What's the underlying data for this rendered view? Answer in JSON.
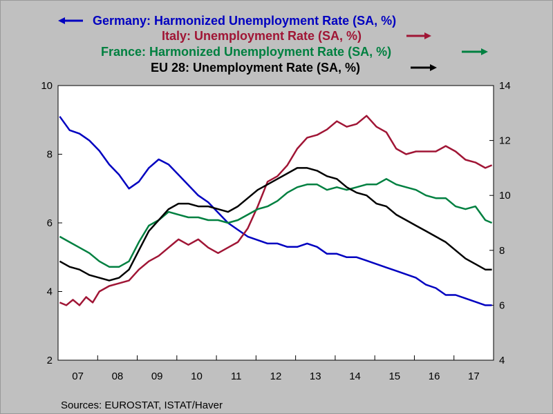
{
  "chart_data": {
    "type": "line",
    "title": "",
    "source": "Sources:  EUROSTAT, ISTAT/Haver",
    "x_start": "2007-01",
    "x_end": "2017-12",
    "x_ticks": [
      "07",
      "08",
      "09",
      "10",
      "11",
      "12",
      "13",
      "14",
      "15",
      "16",
      "17"
    ],
    "y_left": {
      "min": 2,
      "max": 10,
      "ticks": [
        "2",
        "4",
        "6",
        "8",
        "10"
      ]
    },
    "y_right": {
      "min": 4,
      "max": 14,
      "ticks": [
        "4",
        "6",
        "8",
        "10",
        "12",
        "14"
      ]
    },
    "grid": false,
    "legend_position": "top-center",
    "colors": {
      "germany": "#0000c0",
      "italy": "#a01535",
      "france": "#008040",
      "eu": "#000000",
      "plot_bg": "#ffffff",
      "page_bg": "#c0c0c0"
    },
    "series": [
      {
        "key": "germany",
        "name": "Germany: Harmonized Unemployment Rate (SA, %)",
        "axis": "left",
        "arrow": "left",
        "values": [
          {
            "x": "2007-01",
            "y": 9.1
          },
          {
            "x": "2007-04",
            "y": 8.7
          },
          {
            "x": "2007-07",
            "y": 8.6
          },
          {
            "x": "2007-10",
            "y": 8.4
          },
          {
            "x": "2008-01",
            "y": 8.1
          },
          {
            "x": "2008-04",
            "y": 7.7
          },
          {
            "x": "2008-07",
            "y": 7.4
          },
          {
            "x": "2008-10",
            "y": 7.0
          },
          {
            "x": "2009-01",
            "y": 7.2
          },
          {
            "x": "2009-04",
            "y": 7.6
          },
          {
            "x": "2009-07",
            "y": 7.85
          },
          {
            "x": "2009-10",
            "y": 7.7
          },
          {
            "x": "2010-01",
            "y": 7.4
          },
          {
            "x": "2010-04",
            "y": 7.1
          },
          {
            "x": "2010-07",
            "y": 6.8
          },
          {
            "x": "2010-10",
            "y": 6.6
          },
          {
            "x": "2011-01",
            "y": 6.3
          },
          {
            "x": "2011-04",
            "y": 6.0
          },
          {
            "x": "2011-07",
            "y": 5.8
          },
          {
            "x": "2011-10",
            "y": 5.6
          },
          {
            "x": "2012-01",
            "y": 5.5
          },
          {
            "x": "2012-04",
            "y": 5.4
          },
          {
            "x": "2012-07",
            "y": 5.4
          },
          {
            "x": "2012-10",
            "y": 5.3
          },
          {
            "x": "2013-01",
            "y": 5.3
          },
          {
            "x": "2013-04",
            "y": 5.4
          },
          {
            "x": "2013-07",
            "y": 5.3
          },
          {
            "x": "2013-10",
            "y": 5.1
          },
          {
            "x": "2014-01",
            "y": 5.1
          },
          {
            "x": "2014-04",
            "y": 5.0
          },
          {
            "x": "2014-07",
            "y": 5.0
          },
          {
            "x": "2014-10",
            "y": 4.9
          },
          {
            "x": "2015-01",
            "y": 4.8
          },
          {
            "x": "2015-04",
            "y": 4.7
          },
          {
            "x": "2015-07",
            "y": 4.6
          },
          {
            "x": "2015-10",
            "y": 4.5
          },
          {
            "x": "2016-01",
            "y": 4.4
          },
          {
            "x": "2016-04",
            "y": 4.2
          },
          {
            "x": "2016-07",
            "y": 4.1
          },
          {
            "x": "2016-10",
            "y": 3.9
          },
          {
            "x": "2017-01",
            "y": 3.9
          },
          {
            "x": "2017-04",
            "y": 3.8
          },
          {
            "x": "2017-07",
            "y": 3.7
          },
          {
            "x": "2017-10",
            "y": 3.6
          },
          {
            "x": "2017-12",
            "y": 3.6
          }
        ]
      },
      {
        "key": "italy",
        "name": "Italy: Unemployment Rate (SA, %)",
        "axis": "right",
        "arrow": "right",
        "values": [
          {
            "x": "2007-01",
            "y": 6.1
          },
          {
            "x": "2007-03",
            "y": 6.0
          },
          {
            "x": "2007-05",
            "y": 6.2
          },
          {
            "x": "2007-07",
            "y": 6.0
          },
          {
            "x": "2007-09",
            "y": 6.3
          },
          {
            "x": "2007-11",
            "y": 6.1
          },
          {
            "x": "2008-01",
            "y": 6.5
          },
          {
            "x": "2008-04",
            "y": 6.7
          },
          {
            "x": "2008-07",
            "y": 6.8
          },
          {
            "x": "2008-10",
            "y": 6.9
          },
          {
            "x": "2009-01",
            "y": 7.3
          },
          {
            "x": "2009-04",
            "y": 7.6
          },
          {
            "x": "2009-07",
            "y": 7.8
          },
          {
            "x": "2009-10",
            "y": 8.1
          },
          {
            "x": "2010-01",
            "y": 8.4
          },
          {
            "x": "2010-04",
            "y": 8.2
          },
          {
            "x": "2010-07",
            "y": 8.4
          },
          {
            "x": "2010-10",
            "y": 8.1
          },
          {
            "x": "2011-01",
            "y": 7.9
          },
          {
            "x": "2011-04",
            "y": 8.1
          },
          {
            "x": "2011-07",
            "y": 8.3
          },
          {
            "x": "2011-10",
            "y": 8.8
          },
          {
            "x": "2012-01",
            "y": 9.6
          },
          {
            "x": "2012-04",
            "y": 10.5
          },
          {
            "x": "2012-07",
            "y": 10.7
          },
          {
            "x": "2012-10",
            "y": 11.1
          },
          {
            "x": "2013-01",
            "y": 11.7
          },
          {
            "x": "2013-04",
            "y": 12.1
          },
          {
            "x": "2013-07",
            "y": 12.2
          },
          {
            "x": "2013-10",
            "y": 12.4
          },
          {
            "x": "2014-01",
            "y": 12.7
          },
          {
            "x": "2014-04",
            "y": 12.5
          },
          {
            "x": "2014-07",
            "y": 12.6
          },
          {
            "x": "2014-10",
            "y": 12.9
          },
          {
            "x": "2015-01",
            "y": 12.5
          },
          {
            "x": "2015-04",
            "y": 12.3
          },
          {
            "x": "2015-07",
            "y": 11.7
          },
          {
            "x": "2015-10",
            "y": 11.5
          },
          {
            "x": "2016-01",
            "y": 11.6
          },
          {
            "x": "2016-04",
            "y": 11.6
          },
          {
            "x": "2016-07",
            "y": 11.6
          },
          {
            "x": "2016-10",
            "y": 11.8
          },
          {
            "x": "2017-01",
            "y": 11.6
          },
          {
            "x": "2017-04",
            "y": 11.3
          },
          {
            "x": "2017-07",
            "y": 11.2
          },
          {
            "x": "2017-10",
            "y": 11.0
          },
          {
            "x": "2017-12",
            "y": 11.1
          }
        ]
      },
      {
        "key": "france",
        "name": "France: Harmonized Unemployment Rate (SA, %)",
        "axis": "right",
        "arrow": "right",
        "values": [
          {
            "x": "2007-01",
            "y": 8.5
          },
          {
            "x": "2007-04",
            "y": 8.3
          },
          {
            "x": "2007-07",
            "y": 8.1
          },
          {
            "x": "2007-10",
            "y": 7.9
          },
          {
            "x": "2008-01",
            "y": 7.6
          },
          {
            "x": "2008-04",
            "y": 7.4
          },
          {
            "x": "2008-07",
            "y": 7.4
          },
          {
            "x": "2008-10",
            "y": 7.6
          },
          {
            "x": "2009-01",
            "y": 8.3
          },
          {
            "x": "2009-04",
            "y": 8.9
          },
          {
            "x": "2009-07",
            "y": 9.1
          },
          {
            "x": "2009-10",
            "y": 9.4
          },
          {
            "x": "2010-01",
            "y": 9.3
          },
          {
            "x": "2010-04",
            "y": 9.2
          },
          {
            "x": "2010-07",
            "y": 9.2
          },
          {
            "x": "2010-10",
            "y": 9.1
          },
          {
            "x": "2011-01",
            "y": 9.1
          },
          {
            "x": "2011-04",
            "y": 9.0
          },
          {
            "x": "2011-07",
            "y": 9.1
          },
          {
            "x": "2011-10",
            "y": 9.3
          },
          {
            "x": "2012-01",
            "y": 9.5
          },
          {
            "x": "2012-04",
            "y": 9.6
          },
          {
            "x": "2012-07",
            "y": 9.8
          },
          {
            "x": "2012-10",
            "y": 10.1
          },
          {
            "x": "2013-01",
            "y": 10.3
          },
          {
            "x": "2013-04",
            "y": 10.4
          },
          {
            "x": "2013-07",
            "y": 10.4
          },
          {
            "x": "2013-10",
            "y": 10.2
          },
          {
            "x": "2014-01",
            "y": 10.3
          },
          {
            "x": "2014-04",
            "y": 10.2
          },
          {
            "x": "2014-07",
            "y": 10.3
          },
          {
            "x": "2014-10",
            "y": 10.4
          },
          {
            "x": "2015-01",
            "y": 10.4
          },
          {
            "x": "2015-04",
            "y": 10.6
          },
          {
            "x": "2015-07",
            "y": 10.4
          },
          {
            "x": "2015-10",
            "y": 10.3
          },
          {
            "x": "2016-01",
            "y": 10.2
          },
          {
            "x": "2016-04",
            "y": 10.0
          },
          {
            "x": "2016-07",
            "y": 9.9
          },
          {
            "x": "2016-10",
            "y": 9.9
          },
          {
            "x": "2017-01",
            "y": 9.6
          },
          {
            "x": "2017-04",
            "y": 9.5
          },
          {
            "x": "2017-07",
            "y": 9.6
          },
          {
            "x": "2017-10",
            "y": 9.1
          },
          {
            "x": "2017-12",
            "y": 9.0
          }
        ]
      },
      {
        "key": "eu",
        "name": "EU 28: Unemployment Rate (SA, %)",
        "axis": "right",
        "arrow": "right",
        "values": [
          {
            "x": "2007-01",
            "y": 7.6
          },
          {
            "x": "2007-04",
            "y": 7.4
          },
          {
            "x": "2007-07",
            "y": 7.3
          },
          {
            "x": "2007-10",
            "y": 7.1
          },
          {
            "x": "2008-01",
            "y": 7.0
          },
          {
            "x": "2008-04",
            "y": 6.9
          },
          {
            "x": "2008-07",
            "y": 7.0
          },
          {
            "x": "2008-10",
            "y": 7.3
          },
          {
            "x": "2009-01",
            "y": 8.0
          },
          {
            "x": "2009-04",
            "y": 8.7
          },
          {
            "x": "2009-07",
            "y": 9.1
          },
          {
            "x": "2009-10",
            "y": 9.5
          },
          {
            "x": "2010-01",
            "y": 9.7
          },
          {
            "x": "2010-04",
            "y": 9.7
          },
          {
            "x": "2010-07",
            "y": 9.6
          },
          {
            "x": "2010-10",
            "y": 9.6
          },
          {
            "x": "2011-01",
            "y": 9.5
          },
          {
            "x": "2011-04",
            "y": 9.4
          },
          {
            "x": "2011-07",
            "y": 9.6
          },
          {
            "x": "2011-10",
            "y": 9.9
          },
          {
            "x": "2012-01",
            "y": 10.2
          },
          {
            "x": "2012-04",
            "y": 10.4
          },
          {
            "x": "2012-07",
            "y": 10.6
          },
          {
            "x": "2012-10",
            "y": 10.8
          },
          {
            "x": "2013-01",
            "y": 11.0
          },
          {
            "x": "2013-04",
            "y": 11.0
          },
          {
            "x": "2013-07",
            "y": 10.9
          },
          {
            "x": "2013-10",
            "y": 10.7
          },
          {
            "x": "2014-01",
            "y": 10.6
          },
          {
            "x": "2014-04",
            "y": 10.3
          },
          {
            "x": "2014-07",
            "y": 10.1
          },
          {
            "x": "2014-10",
            "y": 10.0
          },
          {
            "x": "2015-01",
            "y": 9.7
          },
          {
            "x": "2015-04",
            "y": 9.6
          },
          {
            "x": "2015-07",
            "y": 9.3
          },
          {
            "x": "2015-10",
            "y": 9.1
          },
          {
            "x": "2016-01",
            "y": 8.9
          },
          {
            "x": "2016-04",
            "y": 8.7
          },
          {
            "x": "2016-07",
            "y": 8.5
          },
          {
            "x": "2016-10",
            "y": 8.3
          },
          {
            "x": "2017-01",
            "y": 8.0
          },
          {
            "x": "2017-04",
            "y": 7.7
          },
          {
            "x": "2017-07",
            "y": 7.5
          },
          {
            "x": "2017-10",
            "y": 7.3
          },
          {
            "x": "2017-12",
            "y": 7.3
          }
        ]
      }
    ]
  }
}
